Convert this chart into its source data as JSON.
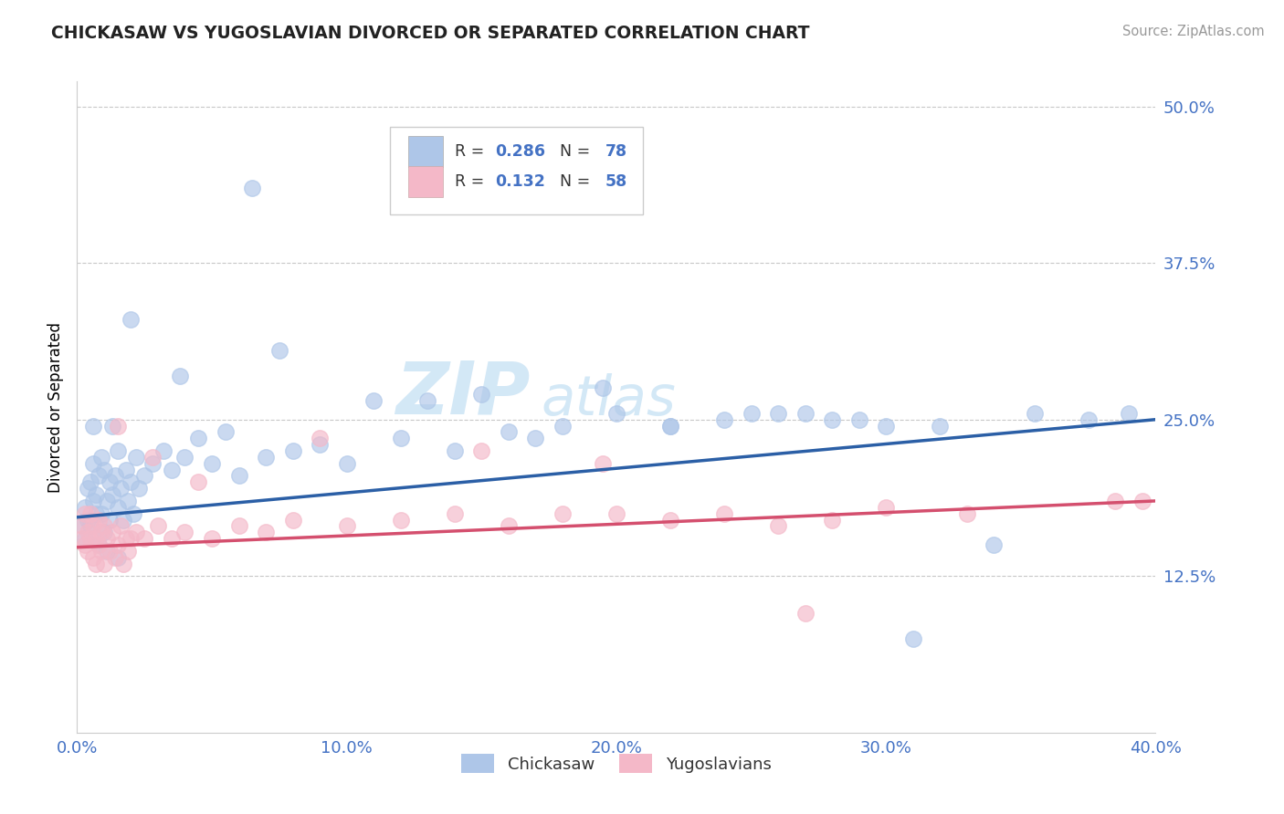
{
  "title": "CHICKASAW VS YUGOSLAVIAN DIVORCED OR SEPARATED CORRELATION CHART",
  "source_text": "Source: ZipAtlas.com",
  "ylabel": "Divorced or Separated",
  "x_tick_labels": [
    "0.0%",
    "10.0%",
    "20.0%",
    "30.0%",
    "40.0%"
  ],
  "x_tick_vals": [
    0.0,
    10.0,
    20.0,
    30.0,
    40.0
  ],
  "y_tick_labels": [
    "12.5%",
    "25.0%",
    "37.5%",
    "50.0%"
  ],
  "y_tick_vals": [
    12.5,
    25.0,
    37.5,
    50.0
  ],
  "xlim": [
    0.0,
    40.0
  ],
  "ylim": [
    0.0,
    52.0
  ],
  "blue_color": "#aec6e8",
  "pink_color": "#f4b8c8",
  "blue_line_color": "#2b5fa6",
  "pink_line_color": "#d44f6e",
  "watermark_color": "#cce4f5",
  "chickasaw_x": [
    0.2,
    0.3,
    0.3,
    0.4,
    0.4,
    0.5,
    0.5,
    0.6,
    0.6,
    0.7,
    0.7,
    0.8,
    0.8,
    0.9,
    0.9,
    1.0,
    1.0,
    1.1,
    1.1,
    1.2,
    1.2,
    1.3,
    1.4,
    1.5,
    1.5,
    1.6,
    1.7,
    1.8,
    1.9,
    2.0,
    2.1,
    2.2,
    2.3,
    2.5,
    2.8,
    3.2,
    3.5,
    4.0,
    4.5,
    5.0,
    6.0,
    7.0,
    8.0,
    9.0,
    10.0,
    12.0,
    14.0,
    16.0,
    17.0,
    18.0,
    20.0,
    22.0,
    24.0,
    25.0,
    27.0,
    29.0,
    30.0,
    32.0,
    35.5,
    37.5,
    39.0,
    5.5,
    13.0,
    19.5,
    2.0,
    3.8,
    7.5,
    11.0,
    15.0,
    26.0,
    28.0,
    31.0,
    34.0,
    22.0,
    6.5,
    1.5,
    1.3,
    0.6
  ],
  "chickasaw_y": [
    16.5,
    15.5,
    18.0,
    17.0,
    19.5,
    16.5,
    20.0,
    18.5,
    21.5,
    17.5,
    19.0,
    15.0,
    20.5,
    17.5,
    22.0,
    16.0,
    21.0,
    18.5,
    14.5,
    20.0,
    17.0,
    19.0,
    20.5,
    18.0,
    22.5,
    19.5,
    17.0,
    21.0,
    18.5,
    20.0,
    17.5,
    22.0,
    19.5,
    20.5,
    21.5,
    22.5,
    21.0,
    22.0,
    23.5,
    21.5,
    20.5,
    22.0,
    22.5,
    23.0,
    21.5,
    23.5,
    22.5,
    24.0,
    23.5,
    24.5,
    25.5,
    24.5,
    25.0,
    25.5,
    25.5,
    25.0,
    24.5,
    24.5,
    25.5,
    25.0,
    25.5,
    24.0,
    26.5,
    27.5,
    33.0,
    28.5,
    30.5,
    26.5,
    27.0,
    25.5,
    25.0,
    7.5,
    15.0,
    24.5,
    43.5,
    14.0,
    24.5,
    24.5
  ],
  "yugoslav_x": [
    0.2,
    0.2,
    0.3,
    0.3,
    0.4,
    0.4,
    0.5,
    0.5,
    0.6,
    0.6,
    0.7,
    0.7,
    0.8,
    0.8,
    0.9,
    0.9,
    1.0,
    1.0,
    1.1,
    1.2,
    1.3,
    1.4,
    1.5,
    1.6,
    1.7,
    1.8,
    1.9,
    2.0,
    2.2,
    2.5,
    3.0,
    3.5,
    4.0,
    5.0,
    6.0,
    7.0,
    8.0,
    10.0,
    12.0,
    14.0,
    16.0,
    18.0,
    20.0,
    22.0,
    24.0,
    26.0,
    28.0,
    30.0,
    33.0,
    38.5,
    2.8,
    4.5,
    9.0,
    15.0,
    19.5,
    27.0,
    39.5,
    1.5
  ],
  "yugoslav_y": [
    15.5,
    16.5,
    15.0,
    17.5,
    14.5,
    16.0,
    15.5,
    17.5,
    14.0,
    16.5,
    13.5,
    15.5,
    15.0,
    17.0,
    14.5,
    16.0,
    13.5,
    16.5,
    15.5,
    14.5,
    16.0,
    14.0,
    15.0,
    16.5,
    13.5,
    15.5,
    14.5,
    15.5,
    16.0,
    15.5,
    16.5,
    15.5,
    16.0,
    15.5,
    16.5,
    16.0,
    17.0,
    16.5,
    17.0,
    17.5,
    16.5,
    17.5,
    17.5,
    17.0,
    17.5,
    16.5,
    17.0,
    18.0,
    17.5,
    18.5,
    22.0,
    20.0,
    23.5,
    22.5,
    21.5,
    9.5,
    18.5,
    24.5
  ],
  "blue_trend_start": 17.2,
  "blue_trend_end": 25.0,
  "pink_trend_start": 14.8,
  "pink_trend_end": 18.5
}
